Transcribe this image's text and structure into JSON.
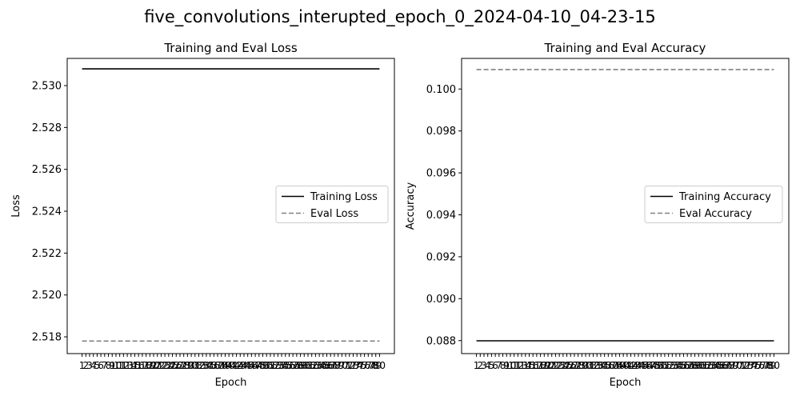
{
  "figure": {
    "suptitle": "five_convolutions_interupted_epoch_0_2024-04-10_04-23-15"
  },
  "chart_data": [
    {
      "type": "line",
      "title": "Training and Eval Loss",
      "xlabel": "Epoch",
      "ylabel": "Loss",
      "x": [
        1,
        2,
        3,
        4,
        5,
        6,
        7,
        8,
        9,
        10,
        11,
        12,
        13,
        14,
        15,
        16,
        17,
        18,
        19,
        20,
        21,
        22,
        23,
        24,
        25,
        26,
        27,
        28,
        29,
        30,
        31,
        32,
        33,
        34,
        35,
        36,
        37,
        38,
        39,
        40,
        41,
        42,
        43,
        44,
        45,
        46,
        47,
        48,
        49,
        50,
        51,
        52,
        53,
        54,
        55,
        56,
        57,
        58,
        59,
        60,
        61,
        62,
        63,
        64,
        65,
        66,
        67,
        68,
        69,
        70,
        71,
        72,
        73,
        74,
        75,
        76,
        77,
        78,
        79,
        80
      ],
      "xlim": [
        1,
        80
      ],
      "ylim": [
        2.5172,
        2.5313
      ],
      "yticks": [
        2.518,
        2.52,
        2.522,
        2.524,
        2.526,
        2.528,
        2.53
      ],
      "ytick_labels": [
        "2.518",
        "2.520",
        "2.522",
        "2.524",
        "2.526",
        "2.528",
        "2.530"
      ],
      "legend_position": "center-right",
      "grid": false,
      "series": [
        {
          "name": "Training Loss",
          "value": 2.5308,
          "color": "#000000",
          "style": "solid"
        },
        {
          "name": "Eval Loss",
          "value": 2.5178,
          "color": "#808080",
          "style": "dashed"
        }
      ]
    },
    {
      "type": "line",
      "title": "Training and Eval Accuracy",
      "xlabel": "Epoch",
      "ylabel": "Accuracy",
      "x": [
        1,
        2,
        3,
        4,
        5,
        6,
        7,
        8,
        9,
        10,
        11,
        12,
        13,
        14,
        15,
        16,
        17,
        18,
        19,
        20,
        21,
        22,
        23,
        24,
        25,
        26,
        27,
        28,
        29,
        30,
        31,
        32,
        33,
        34,
        35,
        36,
        37,
        38,
        39,
        40,
        41,
        42,
        43,
        44,
        45,
        46,
        47,
        48,
        49,
        50,
        51,
        52,
        53,
        54,
        55,
        56,
        57,
        58,
        59,
        60,
        61,
        62,
        63,
        64,
        65,
        66,
        67,
        68,
        69,
        70,
        71,
        72,
        73,
        74,
        75,
        76,
        77,
        78,
        79,
        80
      ],
      "xlim": [
        1,
        80
      ],
      "ylim": [
        0.08738,
        0.10146
      ],
      "yticks": [
        0.088,
        0.09,
        0.092,
        0.094,
        0.096,
        0.098,
        0.1
      ],
      "ytick_labels": [
        "0.088",
        "0.090",
        "0.092",
        "0.094",
        "0.096",
        "0.098",
        "0.100"
      ],
      "legend_position": "center-right",
      "grid": false,
      "series": [
        {
          "name": "Training Accuracy",
          "value": 0.08799,
          "color": "#000000",
          "style": "solid"
        },
        {
          "name": "Eval Accuracy",
          "value": 0.10093,
          "color": "#808080",
          "style": "dashed"
        }
      ]
    }
  ]
}
